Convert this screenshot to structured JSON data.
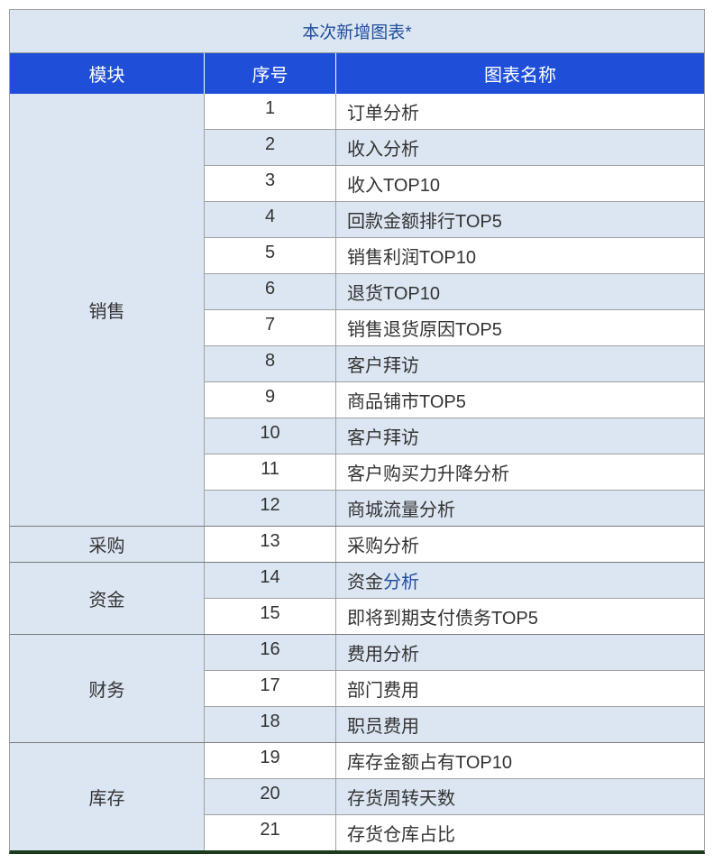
{
  "table": {
    "title": "本次新增图表*",
    "title_color": "#1f4e9e",
    "title_bg": "#dce6f2",
    "header_bg": "#1f4ed8",
    "header_fg": "#ffffff",
    "row_bg_odd": "#ffffff",
    "row_bg_even": "#dce6f2",
    "module_bg": "#dce6f2",
    "border_color": "#a0a0a0",
    "group_border_color": "#7a7a7a",
    "bottom_border_color": "#1a3a1a",
    "font_size_body": 20,
    "font_size_title": 19,
    "columns": {
      "module": "模块",
      "seq": "序号",
      "name": "图表名称"
    },
    "col_widths": {
      "module": 216,
      "seq": 146
    },
    "groups": [
      {
        "module": "销售",
        "rows": [
          {
            "seq": "1",
            "name": "订单分析"
          },
          {
            "seq": "2",
            "name": "收入分析"
          },
          {
            "seq": "3",
            "name": "收入TOP10"
          },
          {
            "seq": "4",
            "name": "回款金额排行TOP5"
          },
          {
            "seq": "5",
            "name": "销售利润TOP10"
          },
          {
            "seq": "6",
            "name": "退货TOP10"
          },
          {
            "seq": "7",
            "name": "销售退货原因TOP5"
          },
          {
            "seq": "8",
            "name": "客户拜访"
          },
          {
            "seq": "9",
            "name": "商品铺市TOP5"
          },
          {
            "seq": "10",
            "name": "客户拜访"
          },
          {
            "seq": "11",
            "name": "客户购买力升降分析"
          },
          {
            "seq": "12",
            "name": "商城流量分析"
          }
        ]
      },
      {
        "module": "采购",
        "rows": [
          {
            "seq": "13",
            "name": "采购分析"
          }
        ]
      },
      {
        "module": "资金",
        "rows": [
          {
            "seq": "14",
            "name_parts": [
              {
                "text": "资金",
                "color": "#333333"
              },
              {
                "text": "分析",
                "color": "#1f4e9e"
              }
            ]
          },
          {
            "seq": "15",
            "name": "即将到期支付债务TOP5"
          }
        ]
      },
      {
        "module": "财务",
        "rows": [
          {
            "seq": "16",
            "name": "费用分析"
          },
          {
            "seq": "17",
            "name": "部门费用"
          },
          {
            "seq": "18",
            "name": "职员费用"
          }
        ]
      },
      {
        "module": "库存",
        "rows": [
          {
            "seq": "19",
            "name": "库存金额占有TOP10"
          },
          {
            "seq": "20",
            "name": "存货周转天数"
          },
          {
            "seq": "21",
            "name": "存货仓库占比"
          }
        ]
      }
    ]
  }
}
